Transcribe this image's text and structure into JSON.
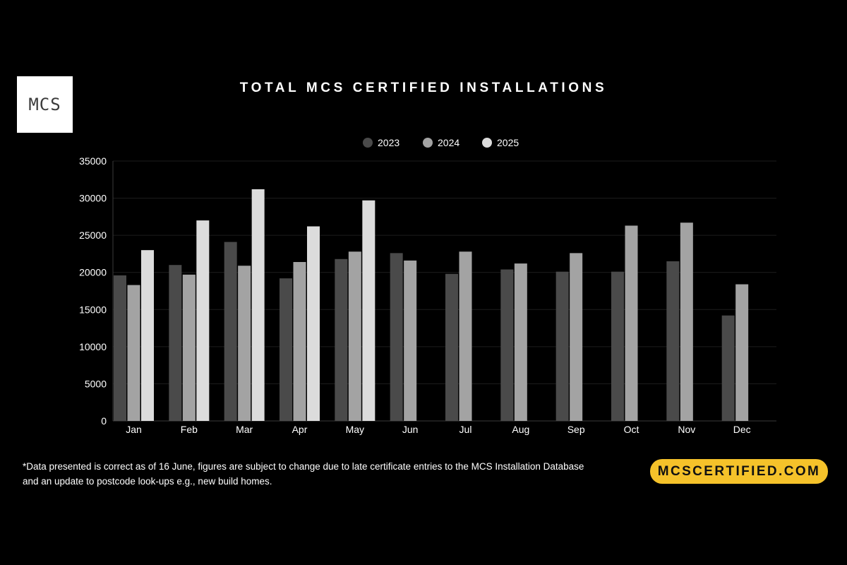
{
  "logo": {
    "text": "MCS"
  },
  "footnote": "*Data presented is correct as of 16 June, figures are subject to change due to late certificate entries to the MCS Installation Database and an update to postcode look-ups e.g., new build homes.",
  "cta": {
    "label": "MCSCERTIFIED.COM"
  },
  "colors": {
    "background": "#000000",
    "accent": "#f5c22a"
  },
  "chart_data": {
    "type": "bar",
    "title": "TOTAL MCS CERTIFIED INSTALLATIONS",
    "xlabel": "",
    "ylabel": "",
    "ylim": [
      0,
      35000
    ],
    "yticks": [
      0,
      5000,
      10000,
      15000,
      20000,
      25000,
      30000,
      35000
    ],
    "grid": true,
    "legend_position": "top-center",
    "categories": [
      "Jan",
      "Feb",
      "Mar",
      "Apr",
      "May",
      "Jun",
      "Jul",
      "Aug",
      "Sep",
      "Oct",
      "Nov",
      "Dec"
    ],
    "series": [
      {
        "name": "2023",
        "color": "#4a4a4a",
        "values": [
          19600,
          21000,
          24100,
          19200,
          21800,
          22600,
          19800,
          20400,
          20100,
          20100,
          21500,
          14200
        ]
      },
      {
        "name": "2024",
        "color": "#a3a3a3",
        "values": [
          18300,
          19700,
          20900,
          21400,
          22800,
          21600,
          22800,
          21200,
          22600,
          26300,
          26700,
          18400
        ]
      },
      {
        "name": "2025",
        "color": "#dcdcdc",
        "values": [
          23000,
          27000,
          31200,
          26200,
          29700,
          null,
          null,
          null,
          null,
          null,
          null,
          null
        ]
      }
    ]
  }
}
